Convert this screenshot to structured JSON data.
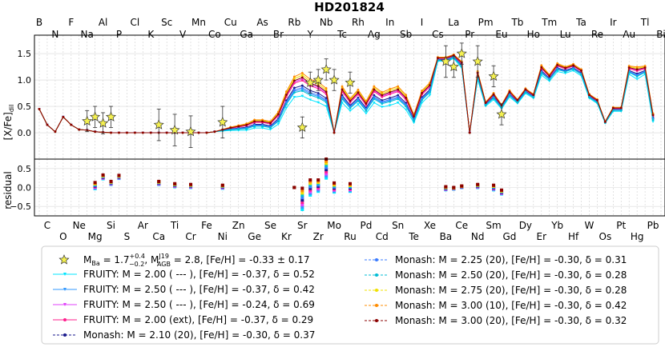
{
  "title": "HD201824",
  "chart_data": {
    "type": "line",
    "title": "HD201824",
    "ylabel_top": "[X/Fe]dil",
    "ylabel_bottom": "residual",
    "ylim_top": [
      -0.5,
      1.85
    ],
    "ylim_bottom": [
      -0.75,
      0.75
    ],
    "yticks_top": [
      "0.0",
      "0.5",
      "1.0",
      "1.5"
    ],
    "yticks_bottom": [
      "−0.5",
      "0.0",
      "0.5"
    ],
    "grid": true,
    "legend_position": "bottom",
    "elements_top": [
      "B",
      "N",
      "F",
      "Na",
      "Al",
      "P",
      "Cl",
      "K",
      "Sc",
      "V",
      "Mn",
      "Co",
      "Cu",
      "Ga",
      "As",
      "Br",
      "Rb",
      "Y",
      "Nb",
      "Tc",
      "Rh",
      "Ag",
      "In",
      "Sb",
      "I",
      "Cs",
      "La",
      "Pr",
      "Pm",
      "Eu",
      "Tb",
      "Ho",
      "Tm",
      "Lu",
      "Ta",
      "Re",
      "Ir",
      "Au",
      "Tl",
      "Bi"
    ],
    "elements_bottom": [
      "C",
      "O",
      "Ne",
      "Mg",
      "Si",
      "S",
      "Ar",
      "Ca",
      "Ti",
      "Cr",
      "Fe",
      "Ni",
      "Zn",
      "Ge",
      "Se",
      "Kr",
      "Sr",
      "Zr",
      "Mo",
      "Ru",
      "Pd",
      "Cd",
      "Sn",
      "Te",
      "Xe",
      "Ba",
      "Ce",
      "Nd",
      "Sm",
      "Gd",
      "Dy",
      "Er",
      "Yb",
      "Hf",
      "W",
      "Os",
      "Pt",
      "Hg",
      "Pb"
    ],
    "observations": {
      "x": [
        "Na",
        "Mg",
        "Al",
        "Si",
        "Ca",
        "Ti",
        "Cr",
        "Ni",
        "Sr",
        "Y",
        "Zr",
        "Nb",
        "Mo",
        "Ru",
        "Ba",
        "La",
        "Ce",
        "Nd",
        "Sm",
        "Eu"
      ],
      "y": [
        0.22,
        0.3,
        0.18,
        0.3,
        0.15,
        0.05,
        0.02,
        0.2,
        0.1,
        0.95,
        1.0,
        1.2,
        1.0,
        0.95,
        1.35,
        1.25,
        1.5,
        1.35,
        1.07,
        0.35
      ],
      "err": [
        0.2,
        0.2,
        0.2,
        0.2,
        0.3,
        0.3,
        0.3,
        0.3,
        0.2,
        0.2,
        0.2,
        0.2,
        0.2,
        0.2,
        0.3,
        0.2,
        0.2,
        0.3,
        0.2,
        0.2
      ]
    },
    "series": [
      {
        "name": "FRUITY:   M = 2.00 ( --- ),  [Fe/H] = -0.37,  δ = 0.52",
        "color": "#00e5ff",
        "marker": "tri"
      },
      {
        "name": "FRUITY:   M = 2.50 ( --- ),  [Fe/H] = -0.37,  δ = 0.42",
        "color": "#3399ff",
        "marker": "tri"
      },
      {
        "name": "FRUITY:   M = 2.50 ( --- ),  [Fe/H] = -0.24,  δ = 0.69",
        "color": "#e040fb",
        "marker": "tri"
      },
      {
        "name": "FRUITY:   M = 2.00 (ext),  [Fe/H] = -0.37,  δ = 0.29",
        "color": "#ff1f8e",
        "marker": "dot"
      },
      {
        "name": "Monash:  M = 2.10 (20),   [Fe/H] = -0.30,  δ = 0.37",
        "color": "#1a1a8c",
        "marker": "dot"
      },
      {
        "name": "Monash:  M = 2.25 (20),   [Fe/H] = -0.30,  δ = 0.31",
        "color": "#3a7bff",
        "marker": "dot"
      },
      {
        "name": "Monash:  M = 2.50 (20),   [Fe/H] = -0.30,  δ = 0.28",
        "color": "#00bcd4",
        "marker": "dot"
      },
      {
        "name": "Monash:  M = 2.75 (20),   [Fe/H] = -0.30,  δ = 0.28",
        "color": "#f0e000",
        "marker": "dot"
      },
      {
        "name": "Monash:  M = 3.00 (10),   [Fe/H] = -0.30,  δ = 0.42",
        "color": "#ff8c00",
        "marker": "dot"
      },
      {
        "name": "Monash:  M = 3.00 (20),   [Fe/H] = -0.30,  δ = 0.32",
        "color": "#8b0000",
        "marker": "dot"
      }
    ],
    "model_base": [
      0.45,
      0.15,
      0.02,
      0.3,
      0.15,
      0.06,
      0.05,
      0.02,
      0.01,
      0.0,
      0.0,
      0.0,
      0.0,
      0.0,
      0.0,
      0.0,
      0.0,
      0.0,
      0.0,
      0.0,
      0.0,
      0.0,
      0.02,
      0.05,
      0.08,
      0.1,
      0.12,
      0.18,
      0.18,
      0.15,
      0.3,
      0.65,
      0.9,
      0.95,
      0.85,
      0.8,
      0.7,
      0.0,
      0.75,
      0.55,
      0.7,
      0.5,
      0.75,
      0.65,
      0.7,
      0.75,
      0.6,
      0.28,
      0.7,
      0.85,
      1.4,
      1.4,
      1.45,
      1.3,
      0.0,
      1.1,
      0.55,
      0.7,
      0.5,
      0.75,
      0.6,
      0.8,
      0.7,
      1.2,
      1.05,
      1.25,
      1.2,
      1.25,
      1.15,
      0.7,
      0.6,
      0.2,
      0.45,
      0.45,
      1.2,
      1.15,
      1.2,
      0.3
    ],
    "model_delta": [
      0.0,
      0.0,
      0.0,
      0.0,
      0.0,
      0.0,
      0.0,
      0.0,
      0.0,
      0.0,
      0.0,
      0.0,
      0.0,
      0.0,
      0.0,
      0.0,
      0.0,
      0.0,
      0.0,
      0.0,
      0.0,
      0.0,
      0.0,
      0.02,
      0.04,
      0.06,
      0.08,
      0.1,
      0.1,
      0.1,
      0.15,
      0.2,
      0.25,
      0.28,
      0.25,
      0.25,
      0.22,
      0.0,
      0.2,
      0.15,
      0.18,
      0.15,
      0.2,
      0.18,
      0.2,
      0.2,
      0.18,
      0.1,
      0.15,
      0.15,
      0.05,
      0.05,
      0.05,
      0.08,
      0.0,
      0.1,
      0.05,
      0.08,
      0.05,
      0.08,
      0.05,
      0.06,
      0.05,
      0.12,
      0.08,
      0.1,
      0.08,
      0.08,
      0.08,
      0.05,
      0.05,
      0.02,
      0.05,
      0.05,
      0.1,
      0.15,
      0.1,
      0.1
    ],
    "residuals": {
      "x": [
        "Mg",
        "Al",
        "Si",
        "P",
        "Ca",
        "Ti",
        "Cr",
        "Ni",
        "Rb",
        "Sr",
        "Y",
        "Zr",
        "Nb",
        "Mo",
        "Ru",
        "Ba",
        "La",
        "Ce",
        "Nd",
        "Sm",
        "Eu"
      ],
      "y": [
        0.05,
        0.28,
        0.12,
        0.28,
        0.12,
        0.06,
        0.04,
        0.02,
        0.0,
        -0.3,
        0.0,
        0.05,
        0.5,
        0.0,
        0.0,
        -0.02,
        -0.02,
        0.02,
        0.04,
        0.0,
        -0.12
      ],
      "spread": [
        0.08,
        0.05,
        0.04,
        0.04,
        0.04,
        0.04,
        0.04,
        0.04,
        0.0,
        0.28,
        0.2,
        0.15,
        0.25,
        0.12,
        0.1,
        0.04,
        0.02,
        0.02,
        0.04,
        0.06,
        0.05
      ]
    },
    "obs_legend": "M_Ba = 1.7 (+0.4 −0.2), M_AGB^J19 = 2.8, [Fe/H] = -0.33 ± 0.17"
  },
  "legend": {
    "obs_label_ba": "M",
    "obs_sub_ba": "Ba",
    "obs_val_ba": " = 1.7",
    "obs_sup_plus": "+0.4",
    "obs_sub_minus": "−0.2",
    "obs_label_agb": ", M",
    "obs_sup_agb": "J19",
    "obs_sub_agb": "AGB",
    "obs_rest": " = 2.8, [Fe/H] = -0.33 ± 0.17"
  }
}
